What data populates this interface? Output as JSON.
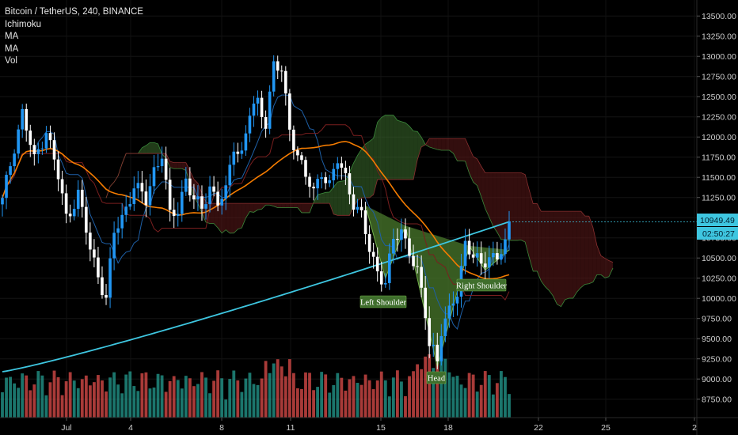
{
  "legend": {
    "symbol": "Bitcoin / TetherUS, 240, BINANCE",
    "indicators": [
      "Ichimoku",
      "MA",
      "MA",
      "Vol"
    ]
  },
  "price_badges": {
    "last_price": "10949.49",
    "countdown": "02:50:27"
  },
  "colors": {
    "background": "#000000",
    "bull_candle": "#2196f3",
    "bear_candle": "#ffffff",
    "volume_up": "#26a69a",
    "volume_down": "#ef5350",
    "ma_long": "#3ec6e0",
    "ma_short": "#f57c00",
    "kumo_bull": "#3c6e2e",
    "kumo_bear": "#5c1a1a",
    "pattern_fill": "#4a7a2c",
    "badge": "#3ec6e0"
  },
  "pattern_labels": [
    "Left Shoulder",
    "Head",
    "Right Shoulder"
  ],
  "chart_data": {
    "type": "candlestick",
    "title": "Bitcoin / TetherUS, 240, BINANCE",
    "y_ticks": [
      "8750.00",
      "9000.00",
      "9250.00",
      "9500.00",
      "9750.00",
      "10000.00",
      "10250.00",
      "10500.00",
      "10750.00",
      "11000.00",
      "11250.00",
      "11500.00",
      "11750.00",
      "12000.00",
      "12250.00",
      "12500.00",
      "12750.00",
      "13000.00",
      "13250.00",
      "13500.00"
    ],
    "x_ticks": [
      "Jul",
      "4",
      "8",
      "11",
      "15",
      "18",
      "22",
      "25",
      "2"
    ],
    "ylim": [
      8600,
      13620
    ],
    "last_price": 10949.49,
    "ma_long_end": 10949.49,
    "close_anchors": [
      {
        "i": 0,
        "c": 11200
      },
      {
        "i": 3,
        "c": 11900
      },
      {
        "i": 5,
        "c": 12300
      },
      {
        "i": 8,
        "c": 11700
      },
      {
        "i": 11,
        "c": 12100
      },
      {
        "i": 14,
        "c": 11500
      },
      {
        "i": 16,
        "c": 11000
      },
      {
        "i": 19,
        "c": 11300
      },
      {
        "i": 22,
        "c": 10600
      },
      {
        "i": 24,
        "c": 10300
      },
      {
        "i": 26,
        "c": 10000
      },
      {
        "i": 28,
        "c": 10800
      },
      {
        "i": 30,
        "c": 11000
      },
      {
        "i": 33,
        "c": 11400
      },
      {
        "i": 36,
        "c": 11200
      },
      {
        "i": 38,
        "c": 11600
      },
      {
        "i": 40,
        "c": 11800
      },
      {
        "i": 42,
        "c": 11000
      },
      {
        "i": 44,
        "c": 11100
      },
      {
        "i": 46,
        "c": 11500
      },
      {
        "i": 48,
        "c": 11200
      },
      {
        "i": 50,
        "c": 11100
      },
      {
        "i": 52,
        "c": 11400
      },
      {
        "i": 54,
        "c": 11200
      },
      {
        "i": 56,
        "c": 11300
      },
      {
        "i": 58,
        "c": 11900
      },
      {
        "i": 60,
        "c": 11800
      },
      {
        "i": 62,
        "c": 12300
      },
      {
        "i": 64,
        "c": 12400
      },
      {
        "i": 66,
        "c": 12200
      },
      {
        "i": 68,
        "c": 12900
      },
      {
        "i": 70,
        "c": 12800
      },
      {
        "i": 72,
        "c": 12100
      },
      {
        "i": 74,
        "c": 11800
      },
      {
        "i": 76,
        "c": 11500
      },
      {
        "i": 78,
        "c": 11300
      },
      {
        "i": 80,
        "c": 11600
      },
      {
        "i": 82,
        "c": 11400
      },
      {
        "i": 84,
        "c": 11700
      },
      {
        "i": 86,
        "c": 11500
      },
      {
        "i": 88,
        "c": 11200
      },
      {
        "i": 90,
        "c": 11000
      },
      {
        "i": 92,
        "c": 10600
      },
      {
        "i": 94,
        "c": 10350
      },
      {
        "i": 96,
        "c": 10200
      },
      {
        "i": 98,
        "c": 10700
      },
      {
        "i": 100,
        "c": 10850
      },
      {
        "i": 102,
        "c": 10600
      },
      {
        "i": 104,
        "c": 10300
      },
      {
        "i": 106,
        "c": 9800
      },
      {
        "i": 107,
        "c": 9450
      },
      {
        "i": 108,
        "c": 9400
      },
      {
        "i": 109,
        "c": 9250
      },
      {
        "i": 110,
        "c": 9600
      },
      {
        "i": 112,
        "c": 9800
      },
      {
        "i": 114,
        "c": 10100
      },
      {
        "i": 116,
        "c": 10700
      },
      {
        "i": 118,
        "c": 10500
      },
      {
        "i": 120,
        "c": 10400
      },
      {
        "i": 122,
        "c": 10550
      },
      {
        "i": 124,
        "c": 10500
      },
      {
        "i": 126,
        "c": 10650
      },
      {
        "i": 127,
        "c": 10949
      }
    ],
    "candle_count": 128,
    "pattern": {
      "name": "Head and Shoulders",
      "points": [
        {
          "label": "",
          "i": 91,
          "y": 11150
        },
        {
          "label": "Left Shoulder",
          "i": 96,
          "y": 10250
        },
        {
          "label": "",
          "i": 101,
          "y": 10900
        },
        {
          "label": "Head",
          "i": 109,
          "y": 9150
        },
        {
          "label": "",
          "i": 117,
          "y": 10650
        },
        {
          "label": "Right Shoulder",
          "i": 121,
          "y": 10350
        },
        {
          "label": "",
          "i": 127,
          "y": 10600
        }
      ]
    }
  }
}
